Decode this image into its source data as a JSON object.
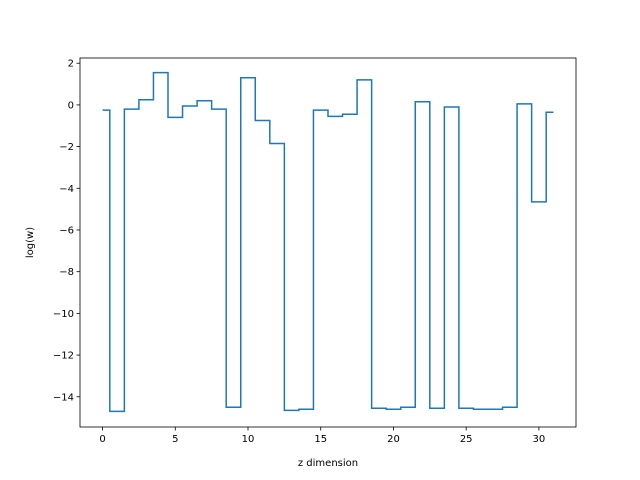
{
  "chart_data": {
    "type": "line",
    "drawstyle": "steps-mid",
    "title": "",
    "xlabel": "z dimension",
    "ylabel": "log(w)",
    "xlim": [
      -1.55,
      32.55
    ],
    "ylim": [
      -15.45,
      2.25
    ],
    "xticks": [
      0,
      5,
      10,
      15,
      20,
      25,
      30
    ],
    "yticks": [
      2,
      0,
      -2,
      -4,
      -6,
      -8,
      -10,
      -12,
      -14
    ],
    "xtick_labels": [
      "0",
      "5",
      "10",
      "15",
      "20",
      "25",
      "30"
    ],
    "ytick_labels": [
      "2",
      "0",
      "−2",
      "−4",
      "−6",
      "−8",
      "−10",
      "−12",
      "−14"
    ],
    "grid": false,
    "legend": "none",
    "line_color": "#1f77b4",
    "series": [
      {
        "x": [
          0,
          1,
          2,
          3,
          4,
          5,
          6,
          7,
          8,
          9,
          10,
          11,
          12,
          13,
          14,
          15,
          16,
          17,
          18,
          19,
          20,
          21,
          22,
          23,
          24,
          25,
          26,
          27,
          28,
          29,
          30,
          31
        ],
        "values": [
          -0.25,
          -14.7,
          -0.2,
          0.25,
          1.55,
          -0.6,
          -0.05,
          0.2,
          -0.2,
          -14.5,
          1.3,
          -0.75,
          -1.85,
          -14.65,
          -14.6,
          -0.25,
          -0.55,
          -0.45,
          1.2,
          -14.55,
          -14.6,
          -14.5,
          0.15,
          -14.55,
          -0.1,
          -14.55,
          -14.6,
          -14.6,
          -14.5,
          0.05,
          -4.65,
          -0.35
        ]
      }
    ]
  }
}
